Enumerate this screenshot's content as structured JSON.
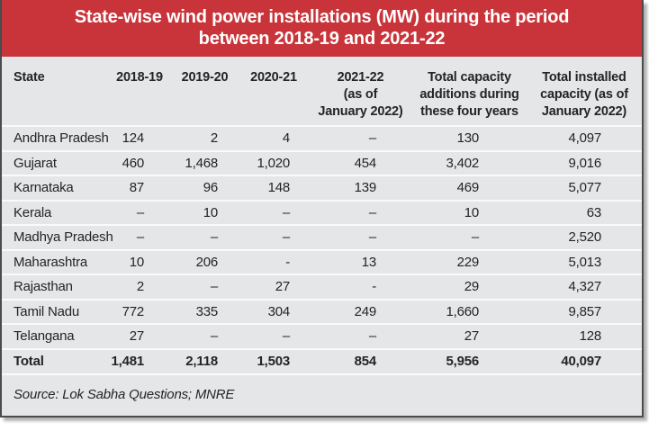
{
  "title": {
    "line1": "State-wise wind power installations (MW) during the period",
    "line2": "between 2018-19 and 2021-22"
  },
  "table": {
    "headers": [
      {
        "lines": [
          "State"
        ]
      },
      {
        "lines": [
          "2018-19"
        ]
      },
      {
        "lines": [
          "2019-20"
        ]
      },
      {
        "lines": [
          "2020-21"
        ]
      },
      {
        "lines": [
          "2021-22",
          "(as of",
          "January 2022)"
        ]
      },
      {
        "lines": [
          "Total capacity",
          "additions during",
          "these four years"
        ]
      },
      {
        "lines": [
          "Total installed",
          "capacity (as of",
          "January 2022)"
        ]
      }
    ],
    "rows": [
      {
        "state": "Andhra Pradesh",
        "values": [
          "124",
          "2",
          "4",
          "–",
          "130",
          "4,097"
        ]
      },
      {
        "state": "Gujarat",
        "values": [
          "460",
          "1,468",
          "1,020",
          "454",
          "3,402",
          "9,016"
        ]
      },
      {
        "state": "Karnataka",
        "values": [
          "87",
          "96",
          "148",
          "139",
          "469",
          "5,077"
        ]
      },
      {
        "state": "Kerala",
        "values": [
          "–",
          "10",
          "–",
          "–",
          "10",
          "63"
        ]
      },
      {
        "state": "Madhya Pradesh",
        "values": [
          "–",
          "–",
          "–",
          "–",
          "–",
          "2,520"
        ]
      },
      {
        "state": "Maharashtra",
        "values": [
          "10",
          "206",
          "-",
          "13",
          "229",
          "5,013"
        ]
      },
      {
        "state": "Rajasthan",
        "values": [
          "2",
          "–",
          "27",
          "-",
          "29",
          "4,327"
        ]
      },
      {
        "state": "Tamil Nadu",
        "values": [
          "772",
          "335",
          "304",
          "249",
          "1,660",
          "9,857"
        ]
      },
      {
        "state": "Telangana",
        "values": [
          "27",
          "–",
          "–",
          "–",
          "27",
          "128"
        ]
      },
      {
        "state": "Total",
        "values": [
          "1,481",
          "2,118",
          "1,503",
          "854",
          "5,956",
          "40,097"
        ]
      }
    ]
  },
  "source": "Source: Lok Sabha Questions; MNRE",
  "colors": {
    "banner": "#c9343a",
    "body_bg": "#e5e6e7",
    "separator": "#fafafa",
    "text": "#222426",
    "border": "#4a4b4c",
    "title_text": "#ffffff"
  }
}
